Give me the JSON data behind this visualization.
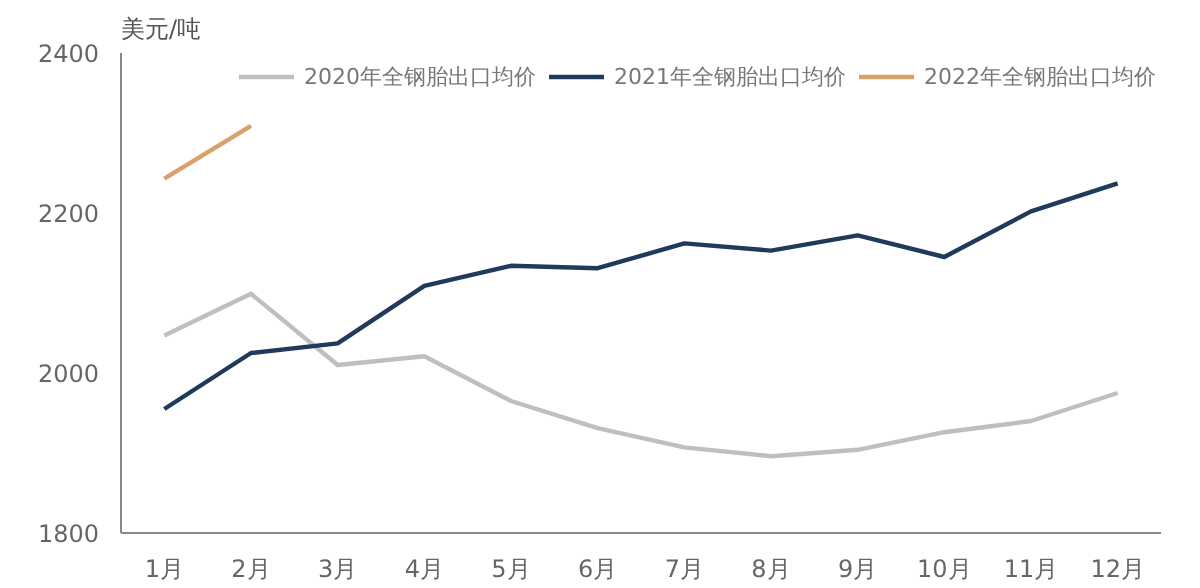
{
  "chart_data": {
    "type": "line",
    "ylabel": "美元/吨",
    "categories": [
      "1月",
      "2月",
      "3月",
      "4月",
      "5月",
      "6月",
      "7月",
      "8月",
      "9月",
      "10月",
      "11月",
      "12月"
    ],
    "series": [
      {
        "name": "2020年全钢胎出口均价",
        "color": "#bfbfbf",
        "values": [
          2047,
          2099,
          2010,
          2021,
          1965,
          1931,
          1907,
          1896,
          1904,
          1926,
          1940,
          1975
        ]
      },
      {
        "name": "2021年全钢胎出口均价",
        "color": "#1f3a5a",
        "values": [
          1955,
          2025,
          2037,
          2109,
          2134,
          2131,
          2162,
          2153,
          2172,
          2145,
          2202,
          2237
        ]
      },
      {
        "name": "2022年全钢胎出口均价",
        "color": "#d9a06b",
        "values": [
          2243,
          2309,
          null,
          null,
          null,
          null,
          null,
          null,
          null,
          null,
          null,
          null
        ]
      }
    ],
    "ylim": [
      1800,
      2400
    ],
    "yticks": [
      1800,
      2000,
      2200,
      2400
    ],
    "grid": false,
    "legend": "top",
    "marker": "none",
    "line_style": "solid"
  }
}
